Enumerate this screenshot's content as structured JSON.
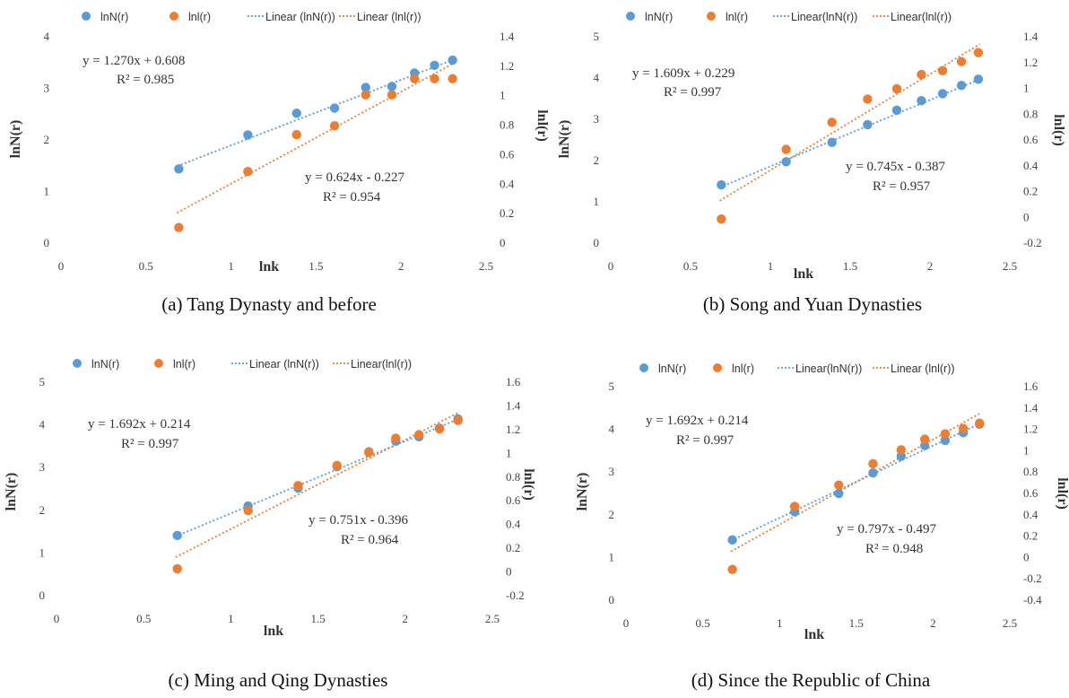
{
  "colors": {
    "series1": "#5b9bd5",
    "series2": "#ed7d31"
  },
  "chart_data": [
    {
      "type": "scatter",
      "caption": "(a) Tang Dynasty and before",
      "xlabel": "lnk",
      "ylabel": "lnN(r)",
      "y2label": "lnl(r)",
      "xlim": [
        0,
        2.5
      ],
      "ylim": [
        0,
        4
      ],
      "y2lim": [
        0,
        1.4
      ],
      "xticks": [
        "0",
        "0.5",
        "1",
        "1.5",
        "2",
        "2.5"
      ],
      "yticks": [
        "0",
        "1",
        "2",
        "3",
        "4"
      ],
      "y2ticks": [
        "0",
        "0.2",
        "0.4",
        "0.6",
        "0.8",
        "1",
        "1.2",
        "1.4"
      ],
      "legend": [
        "lnN(r)",
        "lnl(r)",
        "Linear (lnN(r))",
        "Linear (lnl(r))"
      ],
      "series": [
        {
          "name": "lnN(r)",
          "axis": "left",
          "x": [
            0.693,
            1.099,
            1.386,
            1.609,
            1.792,
            1.946,
            2.079,
            2.197,
            2.303
          ],
          "y": [
            1.42,
            2.08,
            2.5,
            2.6,
            3.0,
            3.02,
            3.28,
            3.43,
            3.53
          ],
          "fit": {
            "slope": 1.27,
            "intercept": 0.608
          }
        },
        {
          "name": "lnl(r)",
          "axis": "right",
          "x": [
            0.693,
            1.099,
            1.386,
            1.609,
            1.792,
            1.946,
            2.079,
            2.197,
            2.303
          ],
          "y": [
            0.1,
            0.48,
            0.73,
            0.79,
            1.0,
            1.0,
            1.11,
            1.11,
            1.11
          ],
          "fit": {
            "slope": 0.624,
            "intercept": -0.227
          }
        }
      ],
      "equations": [
        {
          "eq": "y = 1.270x   + 0.608",
          "r2": "R² = 0.985"
        },
        {
          "eq": "y = 0.624x   - 0.227",
          "r2": "R² = 0.954"
        }
      ]
    },
    {
      "type": "scatter",
      "caption": "(b) Song and Yuan Dynasties",
      "xlabel": "lnk",
      "ylabel": "lnN(r)",
      "y2label": "lnl(r)",
      "xlim": [
        0,
        2.5
      ],
      "ylim": [
        0,
        5
      ],
      "y2lim": [
        -0.2,
        1.4
      ],
      "xticks": [
        "0",
        "0.5",
        "1",
        "1.5",
        "2",
        "2.5"
      ],
      "yticks": [
        "0",
        "1",
        "2",
        "3",
        "4",
        "5"
      ],
      "y2ticks": [
        "-0.2",
        "0",
        "0.2",
        "0.4",
        "0.6",
        "0.8",
        "1",
        "1.2",
        "1.4"
      ],
      "legend": [
        "lnN(r)",
        "lnl(r)",
        "Linear(lnN(r))",
        "Linear(lnl(r))"
      ],
      "series": [
        {
          "name": "lnN(r)",
          "axis": "left",
          "x": [
            0.693,
            1.099,
            1.386,
            1.609,
            1.792,
            1.946,
            2.079,
            2.197,
            2.303
          ],
          "y": [
            1.39,
            1.95,
            2.42,
            2.85,
            3.2,
            3.43,
            3.6,
            3.8,
            3.95
          ],
          "fit": {
            "slope": 1.609,
            "intercept": 0.229
          }
        },
        {
          "name": "lnl(r)",
          "axis": "right",
          "x": [
            0.693,
            1.099,
            1.386,
            1.609,
            1.792,
            1.946,
            2.079,
            2.197,
            2.303
          ],
          "y": [
            -0.02,
            0.52,
            0.73,
            0.91,
            0.99,
            1.1,
            1.13,
            1.2,
            1.27
          ],
          "fit": {
            "slope": 0.745,
            "intercept": -0.387
          }
        }
      ],
      "equations": [
        {
          "eq": "y = 1.609x   + 0.229",
          "r2": "R² = 0.997"
        },
        {
          "eq": "y = 0.745x   - 0.387",
          "r2": "R² = 0.957"
        }
      ]
    },
    {
      "type": "scatter",
      "caption": "(c) Ming and Qing Dynasties",
      "xlabel": "lnk",
      "ylabel": "lnN(r)",
      "y2label": "lnl(r)",
      "xlim": [
        0,
        2.5
      ],
      "ylim": [
        0,
        5
      ],
      "y2lim": [
        -0.2,
        1.6
      ],
      "xticks": [
        "0",
        "0.5",
        "1",
        "1.5",
        "2",
        "2.5"
      ],
      "yticks": [
        "0",
        "1",
        "2",
        "3",
        "4",
        "5"
      ],
      "y2ticks": [
        "-0.2",
        "0",
        "0.2",
        "0.4",
        "0.6",
        "0.8",
        "1",
        "1.2",
        "1.4",
        "1.6"
      ],
      "legend": [
        "lnN(r)",
        "lnl(r)",
        "Linear (lnN(r))",
        "Linear(lnl(r))"
      ],
      "series": [
        {
          "name": "lnN(r)",
          "axis": "left",
          "x": [
            0.693,
            1.099,
            1.386,
            1.609,
            1.792,
            1.946,
            2.079,
            2.197,
            2.303
          ],
          "y": [
            1.39,
            2.08,
            2.5,
            3.0,
            3.35,
            3.6,
            3.7,
            3.9,
            4.12
          ],
          "fit": {
            "slope": 1.692,
            "intercept": 0.214
          }
        },
        {
          "name": "lnl(r)",
          "axis": "right",
          "x": [
            0.693,
            1.099,
            1.386,
            1.609,
            1.792,
            1.946,
            2.079,
            2.197,
            2.303
          ],
          "y": [
            0.02,
            0.51,
            0.72,
            0.89,
            1.0,
            1.12,
            1.15,
            1.2,
            1.27
          ],
          "fit": {
            "slope": 0.751,
            "intercept": -0.396
          }
        }
      ],
      "equations": [
        {
          "eq": "y = 1.692x   + 0.214",
          "r2": "R² = 0.997"
        },
        {
          "eq": "y = 0.751x   - 0.396",
          "r2": "R² = 0.964"
        }
      ]
    },
    {
      "type": "scatter",
      "caption": "(d) Since the Republic of China",
      "xlabel": "lnk",
      "ylabel": "lnN(r)",
      "y2label": "lnl(r)",
      "xlim": [
        0,
        2.5
      ],
      "ylim": [
        0,
        5
      ],
      "y2lim": [
        -0.4,
        1.6
      ],
      "xticks": [
        "0",
        "0.5",
        "1",
        "1.5",
        "2",
        "2.5"
      ],
      "yticks": [
        "0",
        "1",
        "2",
        "3",
        "4",
        "5"
      ],
      "y2ticks": [
        "-0.4",
        "-0.2",
        "0",
        "0.2",
        "0.4",
        "0.6",
        "0.8",
        "1",
        "1.2",
        "1.4",
        "1.6"
      ],
      "legend": [
        "lnN(r)",
        "lnl(r)",
        "Linear(lnN(r))",
        "Linear (lnl(r))"
      ],
      "series": [
        {
          "name": "lnN(r)",
          "axis": "left",
          "x": [
            0.693,
            1.099,
            1.386,
            1.609,
            1.792,
            1.946,
            2.079,
            2.197,
            2.303
          ],
          "y": [
            1.39,
            2.05,
            2.48,
            2.96,
            3.35,
            3.6,
            3.72,
            3.9,
            4.1
          ],
          "fit": {
            "slope": 1.692,
            "intercept": 0.214
          }
        },
        {
          "name": "lnl(r)",
          "axis": "right",
          "x": [
            0.693,
            1.099,
            1.386,
            1.609,
            1.792,
            1.946,
            2.079,
            2.197,
            2.303
          ],
          "y": [
            -0.12,
            0.47,
            0.67,
            0.87,
            1.0,
            1.1,
            1.15,
            1.2,
            1.25
          ],
          "fit": {
            "slope": 0.797,
            "intercept": -0.497
          }
        }
      ],
      "equations": [
        {
          "eq": "y = 1.692x   + 0.214",
          "r2": "R² = 0.997"
        },
        {
          "eq": "y = 0.797x   - 0.497",
          "r2": "R² = 0.948"
        }
      ]
    }
  ]
}
